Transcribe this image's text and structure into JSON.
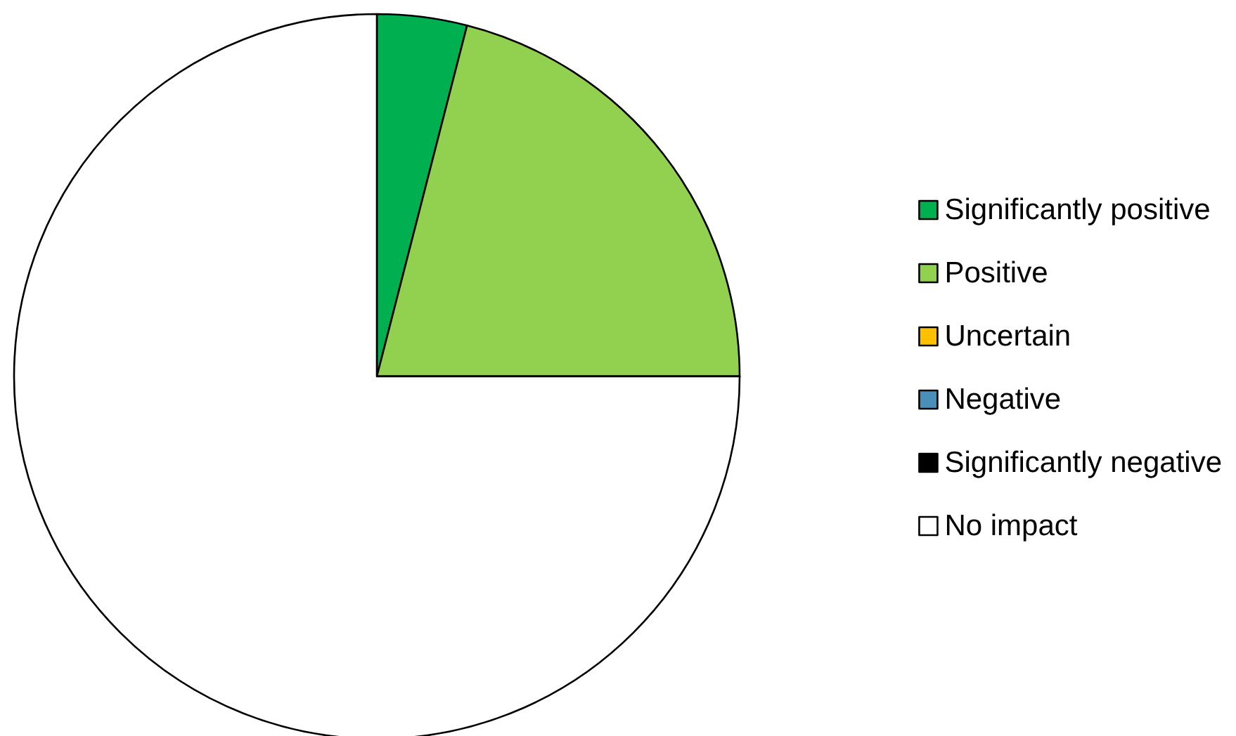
{
  "chart_data": {
    "type": "pie",
    "categories": [
      "Significantly positive",
      "Positive",
      "Uncertain",
      "Negative",
      "Significantly negative",
      "No impact"
    ],
    "values": [
      4,
      21,
      0,
      0,
      0,
      75
    ],
    "colors": [
      "#00b050",
      "#92d050",
      "#ffc000",
      "#4a8fba",
      "#000000",
      "#ffffff"
    ],
    "legend": "right"
  }
}
